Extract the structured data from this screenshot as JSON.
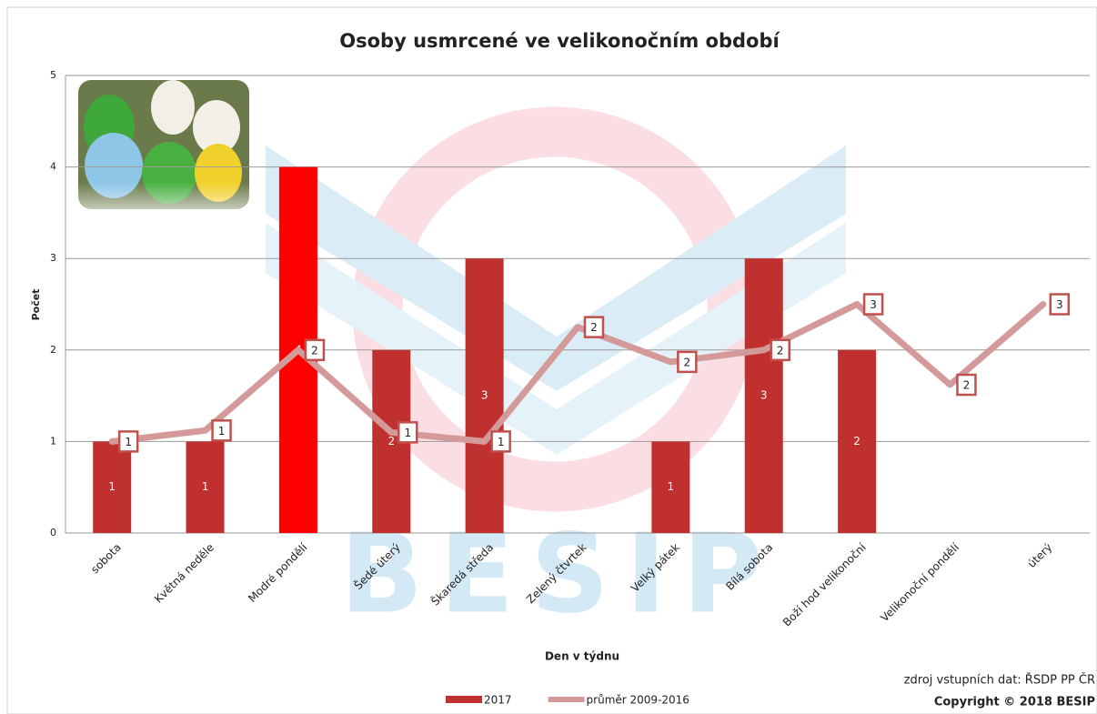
{
  "chart_data": {
    "type": "bar",
    "title": "Osoby usmrcené ve velikonočním období",
    "x_label": "Den v týdnu",
    "y_label": "Počet",
    "categories": [
      "sobota",
      "Květná neděle",
      "Modré pondělí",
      "Šedé úterý",
      "Škaredá středa",
      "Zelený čtvrtek",
      "Velký pátek",
      "Bílá sobota",
      "Boží hod velikonoční",
      "Velikonoční pondělí",
      "úterý"
    ],
    "series": [
      {
        "name": "2017",
        "type": "bar",
        "color": "#c0302f",
        "colors": [
          "#c0302f",
          "#c0302f",
          "#ff0000",
          "#c0302f",
          "#c0302f",
          "#c0302f",
          "#c0302f",
          "#c0302f",
          "#c0302f",
          "#c0302f",
          "#c0302f"
        ],
        "values": [
          1,
          1,
          4,
          2,
          3,
          null,
          1,
          3,
          2,
          null,
          null
        ]
      },
      {
        "name": "průměr 2009-2016",
        "type": "line",
        "color": "#d49a9a",
        "values": [
          1.0,
          1.12,
          2.0,
          1.1,
          1.0,
          2.25,
          1.87,
          2.0,
          2.5,
          1.62,
          2.5
        ],
        "value_labels": [
          "1",
          "1",
          "2",
          "1",
          "1",
          "2",
          "2",
          "2",
          "3",
          "2",
          "3"
        ]
      }
    ],
    "ylim": [
      0,
      5
    ],
    "yticks": [
      0,
      1,
      2,
      3,
      4,
      5
    ],
    "grid": true,
    "legend": "bottom",
    "source": "zdroj vstupních dat: ŘSDP PP ČR",
    "copyright": "Copyright © 2018 BESIP",
    "watermark": "BESIP"
  }
}
